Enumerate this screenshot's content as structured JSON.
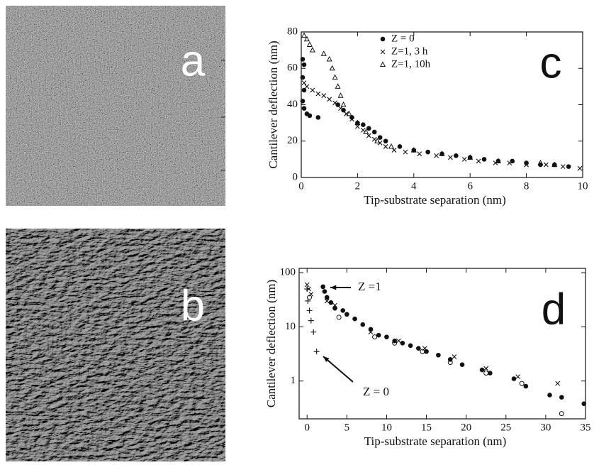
{
  "images": [
    {
      "label": "a"
    },
    {
      "label": "b"
    }
  ],
  "chart_data": [
    {
      "type": "scatter",
      "label": "c",
      "xlabel": "Tip-substrate separation (nm)",
      "ylabel": "Cantilever deflection (nm)",
      "xlim": [
        0,
        10
      ],
      "ylim": [
        0,
        80
      ],
      "xticks": [
        0,
        2,
        4,
        6,
        8,
        10
      ],
      "yticks": [
        0,
        20,
        40,
        60,
        80
      ],
      "legend": "top",
      "series": [
        {
          "name": "Z = 0",
          "marker": "dot",
          "color": "#111",
          "x": [
            0.05,
            0.1,
            0.05,
            0.1,
            0.05,
            0.1,
            0.2,
            0.3,
            0.6,
            1.3,
            1.5,
            1.8,
            2.0,
            2.2,
            2.4,
            2.6,
            2.8,
            3.0,
            3.5,
            4.0,
            4.5,
            5.0,
            5.5,
            6.0,
            6.5,
            7.0,
            7.5,
            8.0,
            8.5,
            9.0,
            9.5
          ],
          "values": [
            65,
            62,
            55,
            48,
            42,
            38,
            35,
            34,
            33,
            40,
            37,
            33,
            30,
            29,
            27,
            25,
            22,
            20,
            17,
            15,
            14,
            13,
            12,
            11,
            10,
            9,
            9,
            8,
            7,
            7,
            6
          ]
        },
        {
          "name": "Z=1, 3 h",
          "marker": "x",
          "color": "#111",
          "x": [
            0.1,
            0.2,
            0.4,
            0.6,
            0.8,
            1.0,
            1.2,
            1.4,
            1.6,
            1.8,
            2.0,
            2.2,
            2.4,
            2.6,
            2.8,
            3.0,
            3.3,
            3.7,
            4.2,
            4.8,
            5.3,
            5.8,
            6.3,
            6.9,
            7.4,
            8.0,
            8.7,
            9.3,
            9.9
          ],
          "values": [
            52,
            50,
            48,
            46,
            45,
            43,
            41,
            38,
            35,
            32,
            28,
            26,
            23,
            21,
            19,
            17,
            15,
            14,
            13,
            12,
            11,
            10,
            9,
            8,
            8,
            7,
            7,
            6,
            5
          ]
        },
        {
          "name": "Z=1, 10h",
          "marker": "triangle",
          "color": "#111",
          "x": [
            0.1,
            0.2,
            0.3,
            0.4,
            0.8,
            1.0,
            1.1,
            1.2,
            1.3,
            1.4,
            1.5,
            1.7,
            2.0,
            2.3,
            2.7,
            3.2,
            4,
            5,
            6,
            7,
            8.5,
            9
          ],
          "values": [
            78,
            76,
            73,
            70,
            68,
            65,
            60,
            55,
            50,
            45,
            40,
            35,
            30,
            25,
            20,
            17,
            15,
            13,
            11,
            9,
            8,
            7
          ]
        }
      ]
    },
    {
      "type": "scatter",
      "label": "d",
      "log_y": true,
      "xlabel": "Tip-substrate separation (nm)",
      "ylabel": "Cantilever deflection (nm)",
      "xlim": [
        -1,
        35
      ],
      "ylim": [
        0.2,
        120
      ],
      "xticks": [
        0,
        5,
        10,
        15,
        20,
        25,
        30,
        35
      ],
      "yticks": [
        1,
        10,
        100
      ],
      "annotations": [
        {
          "text": "Z =1"
        },
        {
          "text": "Z = 0"
        }
      ],
      "series": [
        {
          "marker": "dot",
          "color": "#111",
          "x": [
            2.0,
            2.2,
            2.5,
            3,
            3.5,
            4.5,
            5,
            6,
            7,
            8,
            9,
            10,
            11,
            12,
            13,
            14,
            15,
            16.5,
            18,
            19.5,
            22,
            23,
            26,
            27.5,
            30.5,
            32,
            34.8
          ],
          "values": [
            55,
            45,
            35,
            28,
            22,
            20,
            17,
            14,
            11,
            9,
            7,
            6.5,
            5.5,
            5,
            4.5,
            4,
            3.5,
            3,
            2.5,
            2,
            1.6,
            1.4,
            1.1,
            0.8,
            0.55,
            0.5,
            0.38
          ]
        },
        {
          "marker": "x",
          "color": "#111",
          "x": [
            0,
            0.2,
            0.5,
            2.5,
            3.5,
            8,
            11.5,
            14.8,
            18.5,
            22.5,
            26.5,
            31.5
          ],
          "values": [
            60,
            50,
            40,
            30,
            25,
            8,
            5.5,
            4,
            2.8,
            1.7,
            1.2,
            0.9
          ]
        },
        {
          "marker": "circle",
          "color": "#111",
          "x": [
            0.3,
            4,
            8.5,
            11,
            14.5,
            18,
            22.5,
            27,
            32
          ],
          "values": [
            35,
            15,
            6.5,
            5,
            3.5,
            2.2,
            1.4,
            0.9,
            0.25
          ]
        },
        {
          "marker": "plus",
          "color": "#111",
          "x": [
            0,
            0.1,
            0.3,
            0.5,
            0.8,
            1.2
          ],
          "values": [
            50,
            30,
            20,
            13,
            8,
            3.5
          ]
        }
      ]
    }
  ]
}
